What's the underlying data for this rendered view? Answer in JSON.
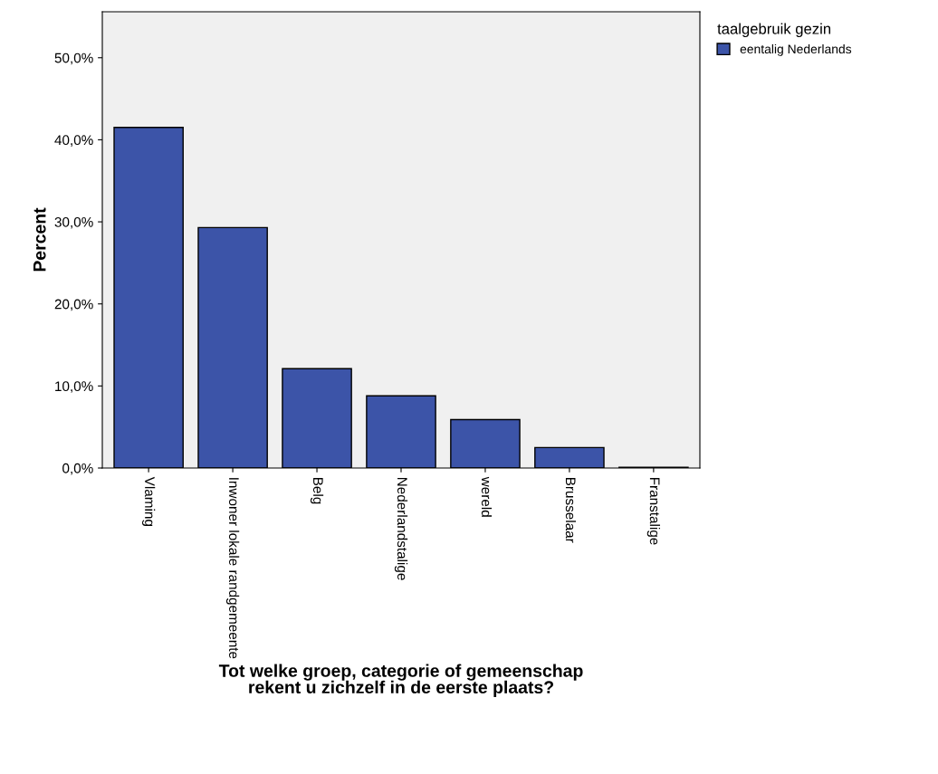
{
  "chart_data": {
    "type": "bar",
    "xlabel": "Tot welke groep, categorie of gemeenschap\nrekent u zichzelf in de eerste plaats?",
    "ylabel": "Percent",
    "legend_title": "taalgebruik gezin",
    "categories": [
      "Vlaming",
      "Inwoner lokale randgemeente",
      "Belg",
      "Nederlandstalige",
      "wereld",
      "Brusselaar",
      "Franstalige"
    ],
    "series": [
      {
        "name": "eentalig Nederlands",
        "color": "#3c54a8",
        "values": [
          41.5,
          29.3,
          12.1,
          8.8,
          5.9,
          2.5,
          0.1
        ]
      }
    ],
    "ylim": [
      0,
      55.6
    ],
    "yticks": [
      {
        "value": 0,
        "label": "0,0%"
      },
      {
        "value": 10,
        "label": "10,0%"
      },
      {
        "value": 20,
        "label": "20,0%"
      },
      {
        "value": 30,
        "label": "30,0%"
      },
      {
        "value": 40,
        "label": "40,0%"
      },
      {
        "value": 50,
        "label": "50,0%"
      }
    ],
    "grid": false,
    "legend": "top right"
  }
}
